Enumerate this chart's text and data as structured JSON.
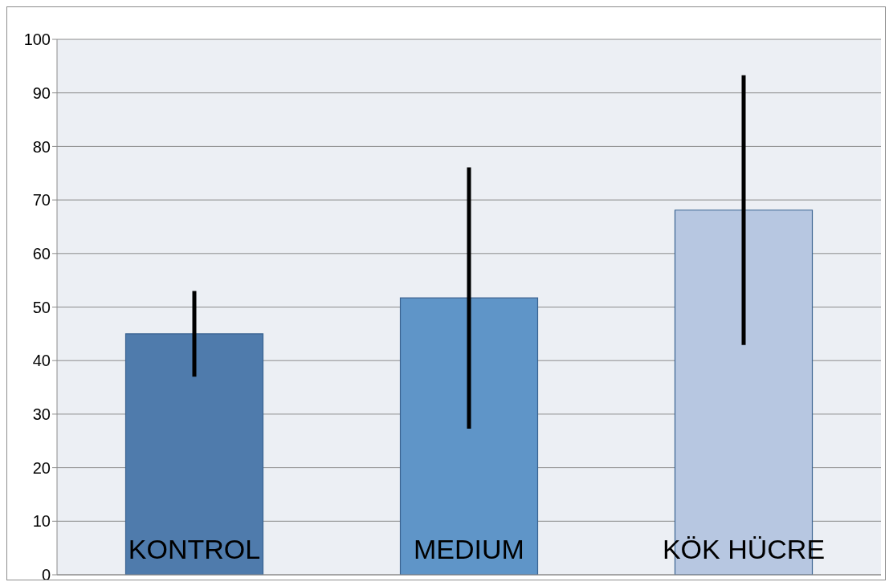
{
  "chart_data": {
    "type": "bar",
    "categories": [
      "KONTROL",
      "MEDIUM",
      "KÖK HÜCRE"
    ],
    "values": [
      45,
      51.7,
      68.1
    ],
    "colors": [
      "#4f7bac",
      "#5f95c8",
      "#b7c7e1"
    ],
    "errors": [
      8,
      24.4,
      25.2
    ],
    "ylim": [
      0,
      100
    ],
    "yticks": [
      0,
      10,
      20,
      30,
      40,
      50,
      60,
      70,
      80,
      90,
      100
    ],
    "grid": "y"
  }
}
